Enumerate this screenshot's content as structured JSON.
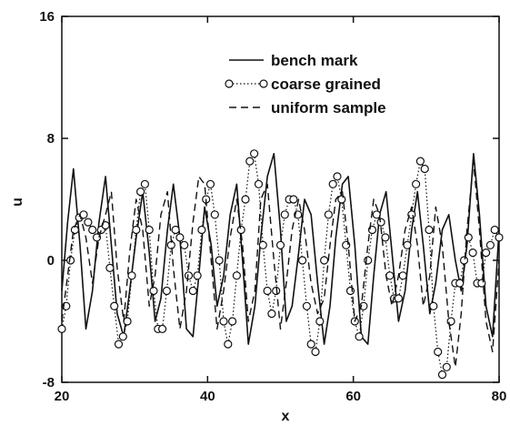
{
  "chart_data": {
    "type": "line",
    "title": "",
    "xlabel": "x",
    "ylabel": "u",
    "xlim": [
      20,
      80
    ],
    "ylim": [
      -8,
      16
    ],
    "xticks": [
      20,
      40,
      60,
      80
    ],
    "yticks": [
      -8,
      0,
      8,
      16
    ],
    "grid": false,
    "legend_position": "top-right",
    "series": [
      {
        "name": "bench mark",
        "style": "solid",
        "color": "#111111",
        "x": [
          20,
          20.8,
          21.6,
          22.5,
          23.3,
          24.2,
          25.1,
          26,
          26.8,
          27.6,
          28.5,
          29.3,
          30.2,
          31.1,
          32,
          32.8,
          33.6,
          34.5,
          35.3,
          36.2,
          37.1,
          38,
          38.8,
          39.6,
          40.5,
          41.3,
          42.2,
          43.1,
          44,
          44.8,
          45.6,
          46.5,
          47.3,
          48.2,
          49.1,
          50,
          50.8,
          51.6,
          52.5,
          53.3,
          54.2,
          55.1,
          56,
          56.8,
          57.6,
          58.5,
          59.3,
          60.2,
          61.1,
          62,
          62.8,
          63.6,
          64.5,
          65.3,
          66.2,
          67.1,
          68,
          68.8,
          69.6,
          70.5,
          71.3,
          72.2,
          73.1,
          74,
          74.8,
          75.6,
          76.5,
          77.3,
          78.2,
          79.1,
          80
        ],
        "y": [
          -2,
          2.5,
          6,
          1,
          -4.5,
          -2,
          2.5,
          5.5,
          1,
          -3.5,
          -5,
          -2,
          1.5,
          4.5,
          0.5,
          -4,
          -2.5,
          2,
          5,
          1.5,
          -4.5,
          -5,
          -1,
          3.5,
          1,
          -3,
          -1,
          3,
          5,
          0,
          -5.5,
          -3,
          1.5,
          5.5,
          7,
          2,
          -4,
          -3,
          0.5,
          4,
          3,
          -1.5,
          -5.5,
          -3,
          1.5,
          5,
          5.5,
          1,
          -5,
          -5.5,
          -1,
          3,
          4.5,
          0.5,
          -4,
          -2,
          2,
          4.5,
          1,
          -3.5,
          -1.5,
          2,
          3,
          0,
          -2,
          1,
          7,
          3,
          -3,
          -5,
          2
        ]
      },
      {
        "name": "coarse grained",
        "style": "dotted-circles",
        "color": "#111111",
        "x": [
          20,
          20.6,
          21.2,
          21.8,
          22.4,
          23,
          23.6,
          24.2,
          24.8,
          25.4,
          26,
          26.6,
          27.2,
          27.8,
          28.4,
          29,
          29.6,
          30.2,
          30.8,
          31.4,
          32,
          32.6,
          33.2,
          33.8,
          34.4,
          35,
          35.6,
          36.2,
          36.8,
          37.4,
          38,
          38.6,
          39.2,
          39.8,
          40.4,
          41,
          41.6,
          42.2,
          42.8,
          43.4,
          44,
          44.6,
          45.2,
          45.8,
          46.4,
          47,
          47.6,
          48.2,
          48.8,
          49.4,
          50,
          50.6,
          51.2,
          51.8,
          52.4,
          53,
          53.6,
          54.2,
          54.8,
          55.4,
          56,
          56.6,
          57.2,
          57.8,
          58.4,
          59,
          59.6,
          60.2,
          60.8,
          61.4,
          62,
          62.6,
          63.2,
          63.8,
          64.4,
          65,
          65.6,
          66.2,
          66.8,
          67.4,
          68,
          68.6,
          69.2,
          69.8,
          70.4,
          71,
          71.6,
          72.2,
          72.8,
          73.4,
          74,
          74.6,
          75.2,
          75.8,
          76.4,
          77,
          77.6,
          78.2,
          78.8,
          79.4,
          80
        ],
        "y": [
          -4.5,
          -3,
          0,
          2,
          2.8,
          3,
          2.5,
          2,
          1.5,
          2,
          2.3,
          -0.5,
          -3,
          -5.5,
          -5,
          -4,
          -1,
          2,
          4.5,
          5,
          2,
          -2,
          -4.5,
          -4.5,
          -2,
          1,
          2,
          1.5,
          1,
          -1,
          -2,
          -1,
          2,
          4,
          5,
          3,
          0,
          -4,
          -5.5,
          -4,
          -1,
          2,
          4,
          6.5,
          7,
          5,
          1,
          -2,
          -3.5,
          -2,
          1,
          3,
          4,
          4,
          3,
          0,
          -3,
          -5.5,
          -6,
          -4,
          0,
          3,
          5,
          5.5,
          4,
          1,
          -2,
          -4,
          -5,
          -3,
          0,
          2,
          3,
          2.5,
          1.5,
          -1,
          -2.5,
          -2.5,
          -1,
          1,
          3,
          5,
          6.5,
          6,
          2,
          -3,
          -6,
          -7.5,
          -7,
          -4,
          -1.5,
          -1.5,
          0,
          1.5,
          0.5,
          -1.5,
          -1.5,
          0.5,
          1,
          2,
          1.5
        ]
      },
      {
        "name": "uniform sample",
        "style": "dashed",
        "color": "#111111",
        "x": [
          20,
          20.8,
          21.6,
          22.5,
          23.3,
          24.2,
          25.1,
          26,
          26.8,
          27.6,
          28.5,
          29.3,
          30.2,
          31.1,
          32,
          32.8,
          33.6,
          34.5,
          35.3,
          36.2,
          37.1,
          38,
          38.8,
          39.6,
          40.5,
          41.3,
          42.2,
          43.1,
          44,
          44.8,
          45.6,
          46.5,
          47.3,
          48.2,
          49.1,
          50,
          50.8,
          51.6,
          52.5,
          53.3,
          54.2,
          55.1,
          56,
          56.8,
          57.6,
          58.5,
          59.3,
          60.2,
          61.1,
          62,
          62.8,
          63.6,
          64.5,
          65.3,
          66.2,
          67.1,
          68,
          68.8,
          69.6,
          70.5,
          71.3,
          72.2,
          73.1,
          74,
          74.8,
          75.6,
          76.5,
          77.3,
          78.2,
          79.1,
          80
        ],
        "y": [
          -4,
          -1,
          2,
          3,
          1.5,
          -1.5,
          1.5,
          3,
          4.5,
          -0.5,
          -4,
          0.5,
          4,
          2,
          -3,
          -1,
          3,
          4.5,
          -0.5,
          -4.5,
          -2,
          2.5,
          5.5,
          5,
          0,
          -4.5,
          -2,
          1.5,
          4,
          1,
          -4,
          -2,
          4,
          5,
          0,
          -4.5,
          -1.5,
          2,
          4,
          2,
          -1.5,
          -3.5,
          -2.5,
          1,
          4,
          4.5,
          1,
          -4,
          -3,
          1,
          4,
          3,
          -1,
          -3,
          -1,
          2,
          3.5,
          1,
          -3,
          -1,
          3.5,
          1,
          -4,
          -7,
          -3.5,
          2,
          6.5,
          2,
          -4,
          -6,
          0
        ]
      }
    ]
  }
}
